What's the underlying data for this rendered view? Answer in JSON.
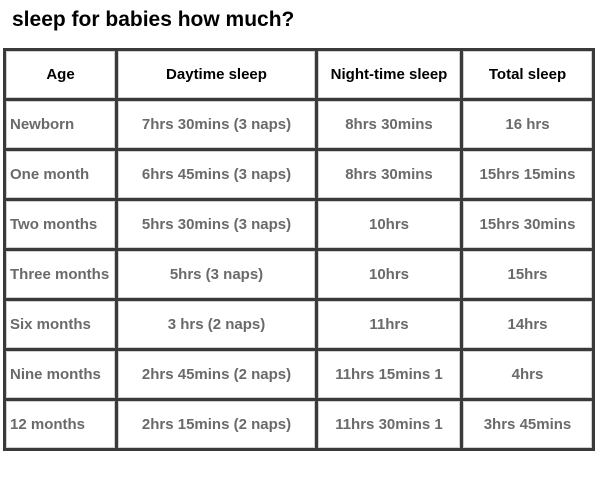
{
  "header": {
    "title": "sleep for babies how much?"
  },
  "table": {
    "headers": [
      "Age",
      "Daytime sleep",
      "Night-time sleep",
      "Total sleep"
    ],
    "rows": [
      [
        "Newborn",
        "7hrs 30mins (3 naps)",
        "8hrs 30mins",
        "16 hrs"
      ],
      [
        "One month",
        "6hrs 45mins (3 naps)",
        "8hrs 30mins",
        "15hrs 15mins"
      ],
      [
        "Two months",
        "5hrs 30mins (3 naps)",
        "10hrs",
        "15hrs 30mins"
      ],
      [
        "Three months",
        "5hrs (3 naps)",
        "10hrs",
        "15hrs"
      ],
      [
        "Six months",
        "3 hrs (2 naps)",
        "11hrs",
        "14hrs"
      ],
      [
        "Nine months",
        "2hrs 45mins (2 naps)",
        "11hrs 15mins 1",
        "4hrs"
      ],
      [
        "12 months",
        "2hrs 15mins (2 naps)",
        "11hrs 30mins 1",
        "3hrs 45mins"
      ]
    ]
  }
}
